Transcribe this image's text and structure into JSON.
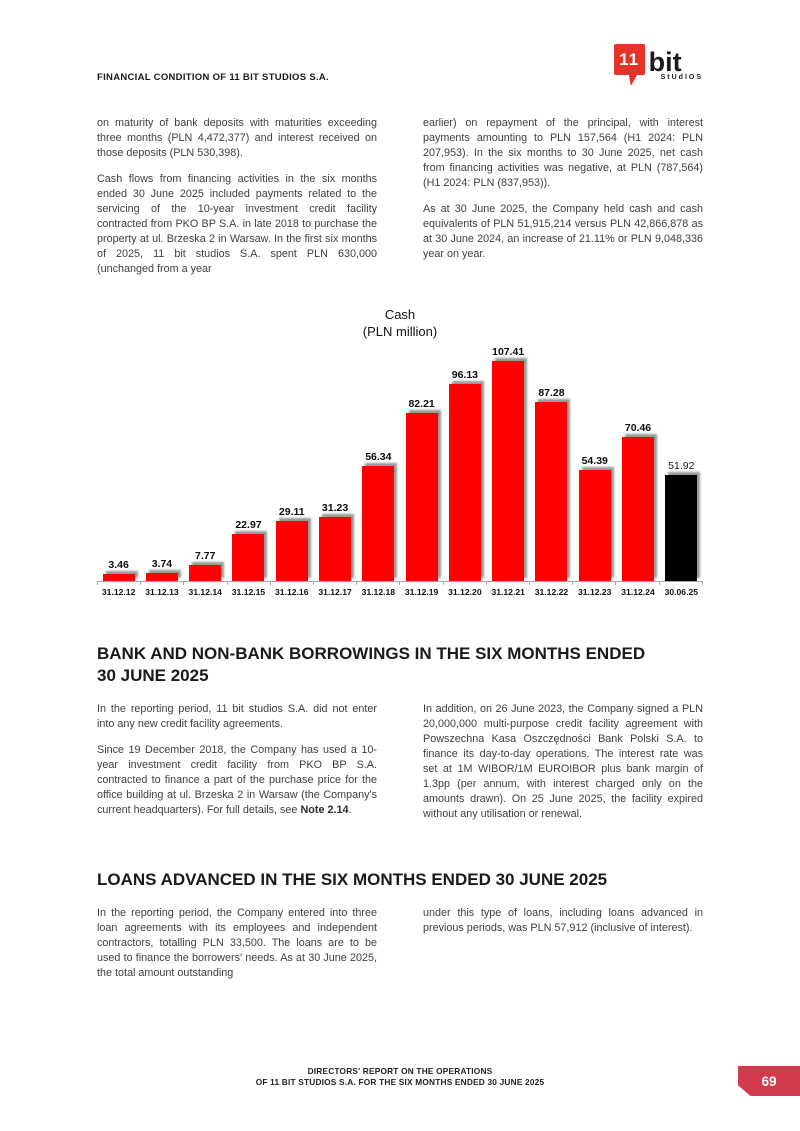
{
  "header": {
    "title": "FINANCIAL CONDITION OF 11 BIT STUDIOS S.A.",
    "logo": {
      "mark": "11",
      "name": "bit",
      "sub": "StUdIOS"
    }
  },
  "intro": {
    "left": [
      "on maturity of bank deposits with maturities exceeding three months (PLN 4,472,377) and interest received on those deposits (PLN 530,398).",
      "Cash flows from financing activities in the six months ended 30 June 2025 included payments related to the servicing of the 10-year investment credit facility contracted from PKO BP S.A. in late 2018 to purchase the property at ul. Brzeska 2 in Warsaw. In the first six months of 2025, 11 bit studios S.A. spent PLN 630,000 (unchanged from a year"
    ],
    "right": [
      "earlier) on repayment of the principal, with interest payments amounting to PLN 157,564 (H1 2024: PLN 207,953). In the six months to 30 June 2025, net cash from financing activities was negative, at PLN (787,564) (H1 2024: PLN (837,953)).",
      "As at 30 June 2025, the Company held cash and cash equivalents of PLN 51,915,214 versus PLN 42,866,878 as at 30 June 2024, an increase of 21.11% or PLN 9,048,336 year on year."
    ]
  },
  "chart_data": {
    "type": "bar",
    "title": "Cash",
    "subtitle": "(PLN million)",
    "categories": [
      "31.12.12",
      "31.12.13",
      "31.12.14",
      "31.12.15",
      "31.12.16",
      "31.12.17",
      "31.12.18",
      "31.12.19",
      "31.12.20",
      "31.12.21",
      "31.12.22",
      "31.12.23",
      "31.12.24",
      "30.06.25"
    ],
    "values": [
      3.46,
      3.74,
      7.77,
      22.97,
      29.11,
      31.23,
      56.34,
      82.21,
      96.13,
      107.41,
      87.28,
      54.39,
      70.46,
      51.92
    ],
    "colors": {
      "default": "#fe0000",
      "final_bar": "#000000"
    },
    "xlabel": "",
    "ylabel": "",
    "ylim": [
      0,
      115
    ],
    "grid": false,
    "legend": null
  },
  "sections": {
    "borrowings": {
      "heading": "BANK AND NON-BANK BORROWINGS IN THE SIX MONTHS ENDED 30 JUNE 2025",
      "left_p1": "In the reporting period, 11 bit studios S.A. did not enter into any new credit facility agreements.",
      "left_p2_pre": "Since 19 December 2018, the Company has used a 10-year investment credit facility from PKO BP S.A. contracted to finance a part of the purchase price for the office building at ul. Brzeska 2 in Warsaw (the Company's current headquarters). For full details, see ",
      "left_p2_bold": "Note 2.14",
      "left_p2_post": ".",
      "right_p1": "In addition, on 26 June 2023, the Company signed a PLN 20,000,000 multi-purpose credit facility agreement with Powszechna Kasa Oszczędności Bank Polski S.A. to finance its day-to-day operations. The interest rate was set at 1M WIBOR/1M EUROIBOR plus bank margin of 1.3pp (per annum, with interest charged only on the amounts drawn). On 25 June 2025, the facility expired without any utilisation or renewal."
    },
    "loans": {
      "heading": "LOANS ADVANCED IN THE SIX MONTHS ENDED 30 JUNE 2025",
      "left_p1": "In the reporting period, the Company entered into three loan agreements with its employees and independent contractors, totalling PLN 33,500. The loans are to be used to finance the borrowers' needs. As at 30 June 2025, the total amount outstanding",
      "right_p1": "under this type of loans, including loans advanced in previous periods, was PLN 57,912 (inclusive of interest)."
    }
  },
  "footer": {
    "line1": "DIRECTORS' REPORT ON THE OPERATIONS",
    "line2": "OF 11 BIT STUDIOS S.A. FOR THE SIX MONTHS ENDED 30 JUNE 2025",
    "page_number": "69"
  }
}
